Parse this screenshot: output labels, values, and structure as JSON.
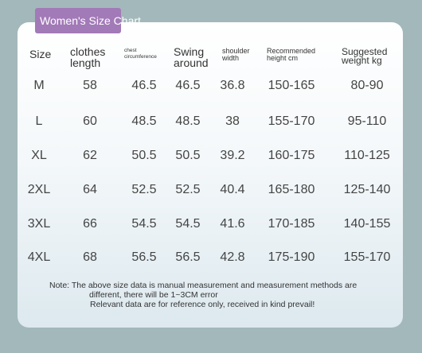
{
  "header": {
    "title": "Women's Size Chart"
  },
  "table": {
    "columns": [
      [
        "Size"
      ],
      [
        "clothes",
        "length"
      ],
      [
        "chest",
        "circumference"
      ],
      [
        "Swing",
        "around"
      ],
      [
        "shoulder",
        "width"
      ],
      [
        "Recommended",
        "height cm"
      ],
      [
        "Suggested",
        "weight kg"
      ]
    ],
    "rows": [
      [
        "M",
        58,
        46.5,
        46.5,
        36.8,
        "150-165",
        "80-90"
      ],
      [
        "L",
        60,
        48.5,
        48.5,
        38,
        "155-170",
        "95-110"
      ],
      [
        "XL",
        62,
        50.5,
        50.5,
        39.2,
        "160-175",
        "110-125"
      ],
      [
        "2XL",
        64,
        52.5,
        52.5,
        40.4,
        "165-180",
        "125-140"
      ],
      [
        "3XL",
        66,
        54.5,
        54.5,
        41.6,
        "170-185",
        "140-155"
      ],
      [
        "4XL",
        68,
        56.5,
        56.5,
        42.8,
        "175-190",
        "155-170"
      ]
    ]
  },
  "note": {
    "lines": [
      "Note: The above size data is manual measurement and measurement methods are",
      "different, there will be 1~3CM error",
      "Relevant data are for reference only, received in kind prevail!"
    ]
  }
}
